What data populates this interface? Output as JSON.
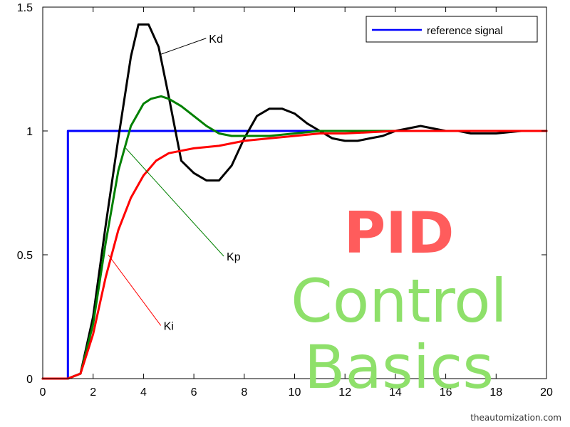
{
  "chart_data": {
    "type": "line",
    "xlim": [
      0,
      20
    ],
    "ylim": [
      0,
      1.5
    ],
    "x_ticks": [
      0,
      2,
      4,
      6,
      8,
      10,
      12,
      14,
      16,
      18,
      20
    ],
    "y_ticks": [
      0,
      0.5,
      1,
      1.5
    ],
    "x_tick_labels": [
      "0",
      "2",
      "4",
      "6",
      "8",
      "10",
      "12",
      "14",
      "16",
      "18",
      "20"
    ],
    "y_tick_labels": [
      "0",
      "0.5",
      "1",
      "1.5"
    ],
    "grid": false,
    "legend_position": "top-right",
    "legend": [
      "reference signal"
    ],
    "series": [
      {
        "name": "reference signal",
        "color": "#0000ff",
        "x": [
          0,
          1,
          1,
          20
        ],
        "y": [
          0,
          0,
          1,
          1
        ]
      },
      {
        "name": "Kd",
        "color": "#000000",
        "x": [
          0,
          1,
          1.5,
          2,
          2.5,
          3,
          3.5,
          3.8,
          4.2,
          4.6,
          5,
          5.5,
          6,
          6.5,
          7,
          7.5,
          8,
          8.5,
          9,
          9.5,
          10,
          10.5,
          11,
          11.5,
          12,
          12.5,
          13,
          13.5,
          14,
          14.5,
          15,
          15.5,
          16,
          16.5,
          17,
          17.5,
          18,
          19,
          20
        ],
        "y": [
          0,
          0,
          0.02,
          0.25,
          0.62,
          0.97,
          1.3,
          1.43,
          1.43,
          1.34,
          1.14,
          0.88,
          0.83,
          0.8,
          0.8,
          0.86,
          0.97,
          1.06,
          1.09,
          1.09,
          1.07,
          1.03,
          1.0,
          0.97,
          0.96,
          0.96,
          0.97,
          0.98,
          1.0,
          1.01,
          1.02,
          1.01,
          1.0,
          1.0,
          0.99,
          0.99,
          0.99,
          1.0,
          1.0
        ]
      },
      {
        "name": "Kp",
        "color": "#008000",
        "x": [
          0,
          1,
          1.5,
          2,
          2.5,
          3,
          3.5,
          4,
          4.3,
          4.7,
          5,
          5.5,
          6,
          6.5,
          7,
          7.5,
          8,
          9,
          10,
          11,
          12,
          14,
          16,
          18,
          20
        ],
        "y": [
          0,
          0,
          0.02,
          0.22,
          0.55,
          0.84,
          1.02,
          1.11,
          1.13,
          1.14,
          1.13,
          1.1,
          1.06,
          1.02,
          0.99,
          0.98,
          0.98,
          0.98,
          0.99,
          1.0,
          1.0,
          1.0,
          1.0,
          1.0,
          1.0
        ]
      },
      {
        "name": "Ki",
        "color": "#ff0000",
        "x": [
          0,
          1,
          1.5,
          2,
          2.5,
          3,
          3.5,
          4,
          4.5,
          5,
          5.5,
          6,
          7,
          8,
          9,
          10,
          11,
          12,
          14,
          16,
          18,
          20
        ],
        "y": [
          0,
          0,
          0.02,
          0.18,
          0.41,
          0.6,
          0.73,
          0.82,
          0.88,
          0.91,
          0.92,
          0.93,
          0.94,
          0.96,
          0.97,
          0.98,
          0.99,
          0.99,
          1.0,
          1.0,
          1.0,
          1.0
        ]
      }
    ],
    "annotations": [
      {
        "text": "Kd",
        "x": 6.6,
        "y": 1.38,
        "ax": 4.7,
        "ay": 1.31
      },
      {
        "text": "Kp",
        "x": 7.3,
        "y": 0.5,
        "ax": 3.3,
        "ay": 0.93
      },
      {
        "text": "Ki",
        "x": 4.8,
        "y": 0.22,
        "ax": 2.6,
        "ay": 0.5
      }
    ]
  },
  "overlay": {
    "title": "PID",
    "line2": "Control",
    "line3": "Basics",
    "title_color": "#ff5c5c",
    "subtitle_color": "#8ee06a",
    "watermark": "theautomization.com"
  }
}
